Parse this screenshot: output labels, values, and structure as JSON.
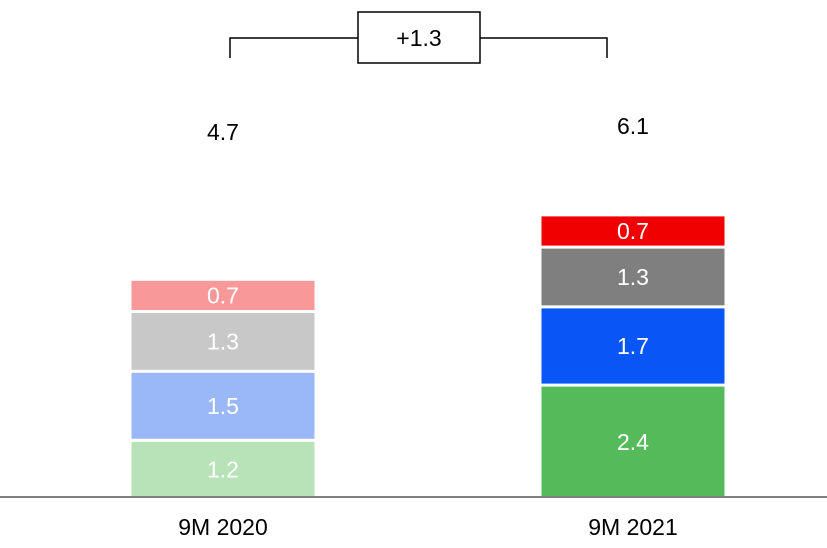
{
  "chart_data": {
    "type": "bar",
    "stacked": true,
    "categories": [
      "9M 2020",
      "9M 2021"
    ],
    "totals": [
      "4.7",
      "6.1"
    ],
    "delta_label": "+1.3",
    "series": [
      {
        "values": [
          1.2,
          2.4
        ],
        "labels": [
          "1.2",
          "2.4"
        ],
        "colors": [
          "#b8e2b8",
          "#55bb5a"
        ]
      },
      {
        "values": [
          1.5,
          1.7
        ],
        "labels": [
          "1.5",
          "1.7"
        ],
        "colors": [
          "#9ab8f8",
          "#0a55f5"
        ]
      },
      {
        "values": [
          1.3,
          1.3
        ],
        "labels": [
          "1.3",
          "1.3"
        ],
        "colors": [
          "#c8c8c8",
          "#7f7f7f"
        ]
      },
      {
        "values": [
          0.7,
          0.7
        ],
        "labels": [
          "0.7",
          "0.7"
        ],
        "colors": [
          "#f89898",
          "#f00000"
        ]
      }
    ],
    "legend": "none",
    "grid": false,
    "axis_color": "#7f7f7f"
  }
}
